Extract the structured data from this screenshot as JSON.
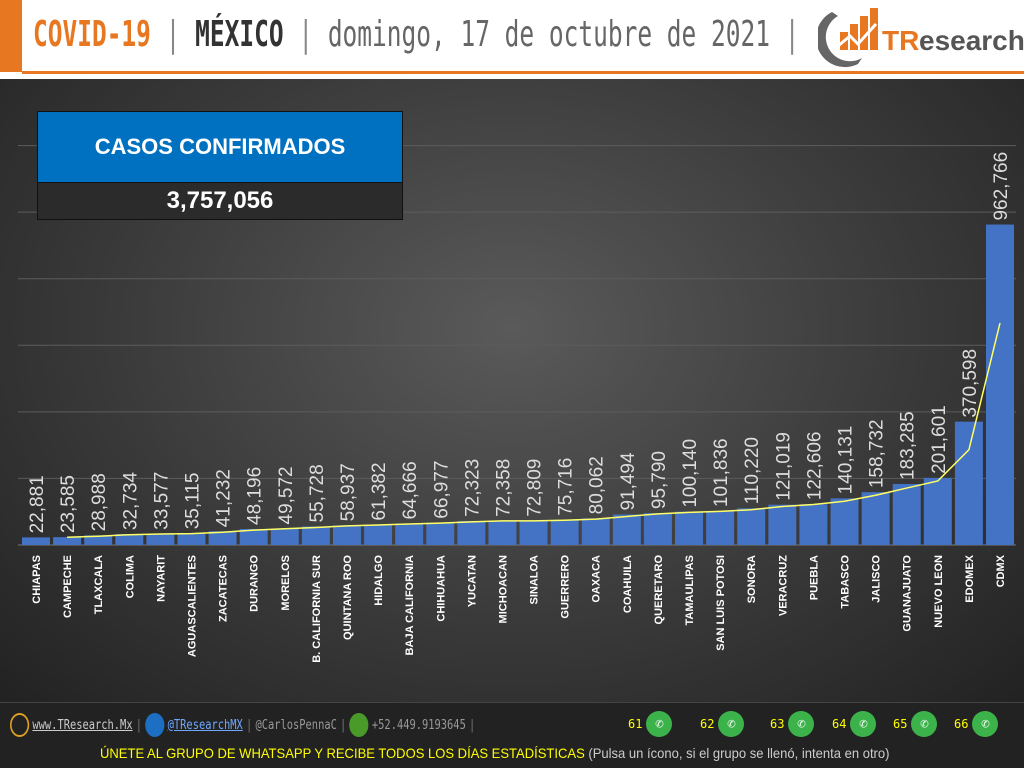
{
  "header": {
    "title_covid": "COVID-19",
    "title_country": "MÉXICO",
    "separator": "|",
    "date": "domingo, 17 de octubre de 2021",
    "brand": "TResearch"
  },
  "summary": {
    "label": "CASOS CONFIRMADOS",
    "value": "3,757,056"
  },
  "colors": {
    "bar": "#4472c4",
    "trend": "#ffff66",
    "accent": "#e87722",
    "box": "#0070c0"
  },
  "chart_data": {
    "type": "bar",
    "categories": [
      "CHIAPAS",
      "CAMPECHE",
      "TLAXCALA",
      "COLIMA",
      "NAYARIT",
      "AGUASCALIENTES",
      "ZACATECAS",
      "DURANGO",
      "MORELOS",
      "B. CALIFORNIA SUR",
      "QUINTANA ROO",
      "HIDALGO",
      "BAJA CALIFORNIA",
      "CHIHUAHUA",
      "YUCATAN",
      "MICHOACAN",
      "SINALOA",
      "GUERRERO",
      "OAXACA",
      "COAHUILA",
      "QUERETARO",
      "TAMAULIPAS",
      "SAN LUIS POTOSI",
      "SONORA",
      "VERACRUZ",
      "PUEBLA",
      "TABASCO",
      "JALISCO",
      "GUANAJUATO",
      "NUEVO LEON",
      "EDOMEX",
      "CDMX"
    ],
    "values": [
      22881,
      23585,
      28988,
      32734,
      33577,
      35115,
      41232,
      48196,
      49572,
      55728,
      58937,
      61382,
      64666,
      66977,
      72323,
      72358,
      72809,
      75716,
      80062,
      91494,
      95790,
      100140,
      101836,
      110220,
      121019,
      122606,
      140131,
      158732,
      183285,
      201601,
      370598,
      962766
    ],
    "labels": [
      "22,881",
      "23,585",
      "28,988",
      "32,734",
      "33,577",
      "35,115",
      "41,232",
      "48,196",
      "49,572",
      "55,728",
      "58,937",
      "61,382",
      "64,666",
      "66,977",
      "72,323",
      "72,358",
      "72,809",
      "75,716",
      "80,062",
      "91,494",
      "95,790",
      "100,140",
      "101,836",
      "110,220",
      "121,019",
      "122,606",
      "140,131",
      "158,732",
      "183,285",
      "201,601",
      "370,598",
      "962,766"
    ],
    "trendline": "2-period moving average",
    "ylim": [
      0,
      1400000
    ],
    "grid": true
  },
  "footer": {
    "website": "www.TResearch.Mx",
    "twitter": "@TResearchMX",
    "handle": "@CarlosPennaC",
    "phone": "+52.449.9193645",
    "groups": [
      "61",
      "62",
      "63",
      "64",
      "65",
      "66"
    ],
    "cta": "ÚNETE AL GRUPO DE WHATSAPP Y RECIBE TODOS LOS DÍAS ESTADÍSTICAS",
    "cta_note": "(Pulsa un ícono, si el grupo se llenó, intenta en otro)"
  }
}
